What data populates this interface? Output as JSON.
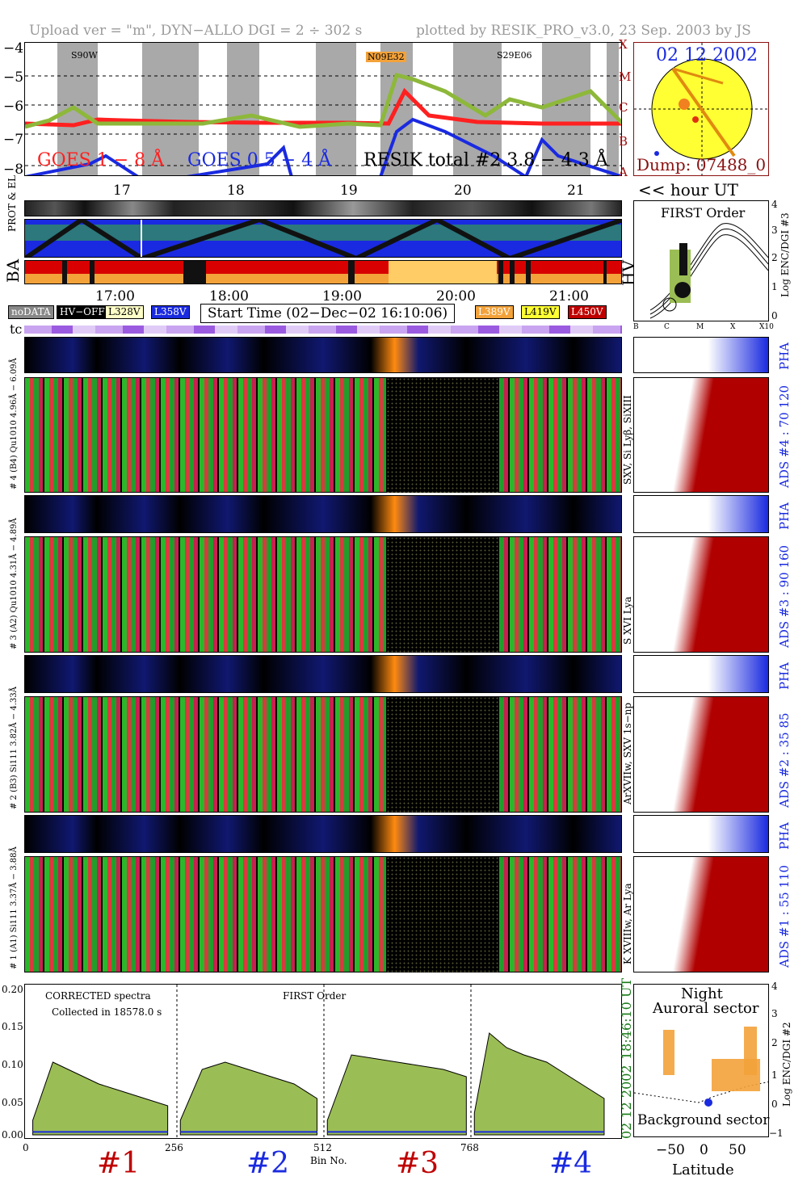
{
  "header": {
    "left": "Upload ver = \"m\", DYN−ALLO DGI =   2 ÷ 302 s",
    "right": "plotted by RESIK_PRO_v3.0, 23 Sep. 2003 by JS"
  },
  "goes": {
    "yticks": [
      "−4",
      "−5",
      "−6",
      "−7",
      "−8"
    ],
    "classes": [
      "X",
      "M",
      "C",
      "B",
      "A"
    ],
    "ar_labels": [
      "S90W",
      "N09E32",
      "S29E06"
    ],
    "legend_goes_long": "GOES 1 − 8 Å",
    "legend_goes_short": "GOES 0.5 − 4 Å",
    "legend_resik": "RESIK total #2  3.8 − 4.3 Å",
    "hour_ticks": [
      "17",
      "18",
      "19",
      "20",
      "21"
    ],
    "hour_unit": "<< hour UT",
    "colors": {
      "goes_long": "#ff2020",
      "goes_short": "#1a2ae0",
      "resik": "#8db83a",
      "shade": "#9a9a9a"
    }
  },
  "sun": {
    "date": "02 12 2002",
    "dump": "Dump: 07488_0"
  },
  "orbit": {
    "labels": [
      "PROT & EL",
      "BA"
    ],
    "first_order_title": "FIRST Order",
    "first_order_axis": "Log ENC/DGI #3",
    "first_order_xticks": [
      "B",
      "C",
      "M",
      "X",
      "X10"
    ],
    "first_order_yticks": [
      "4",
      "3",
      "2",
      "1",
      "0"
    ],
    "hv_label": "HV",
    "time_ticks": [
      "17:00",
      "18:00",
      "19:00",
      "20:00",
      "21:00"
    ]
  },
  "legend": {
    "nodata": "noDATA",
    "hvoff": "HV−OFF",
    "l328": "L328V",
    "l358": "L358V",
    "start": "Start Time (02−Dec−02 16:10:06)",
    "l389": "L389V",
    "l419": "L419V",
    "l450": "L450V",
    "tc": "tc"
  },
  "channels": [
    {
      "pha_label": "6.09Å",
      "label": "# 4 (B4) Qu1010 4.96Å −",
      "lines": "SXV, Si Lyβ, SiXIII",
      "ads": "ADS #4 :   70 120"
    },
    {
      "pha_label": "4.89Å",
      "label": "# 3 (A2) Qu1010 4.31Å −",
      "lines": "S XVI Lya",
      "ads": "ADS #3 :   90 160"
    },
    {
      "pha_label": "4.33Å",
      "label": "# 2 (B3) Si111 3.82Å −",
      "lines": "ArXVIIw, SXV 1s−np",
      "ads": "ADS #2 :   35  85"
    },
    {
      "pha_label": "3.88Å",
      "label": "# 1 (A1) Si111 3.37Å −",
      "lines": "K XVIIIw, Ar Lya",
      "ads": "ADS #1 :   55 110"
    }
  ],
  "pha": "PHA",
  "spectrum": {
    "title1": "CORRECTED spectra",
    "title2": "Collected in 18578.0 s",
    "title3": "FIRST Order",
    "yticks": [
      "0.20",
      "0.15",
      "0.10",
      "0.05",
      "0.00"
    ],
    "xticks": [
      "0",
      "256",
      "512",
      "768"
    ],
    "xlabel": "Bin No.",
    "ch_labels": [
      "#1",
      "#2",
      "#3",
      "#4"
    ],
    "time_right": "18:46:10 UT",
    "date_right": "02 12 2002",
    "colors": {
      "fill": "#9bbd55",
      "line": "#1a2ae0"
    }
  },
  "aurora": {
    "title1": "Night",
    "title2": "Auroral sector",
    "bottom": "Background sector",
    "xlabel": "Latitude",
    "xticks": [
      "−50",
      "0",
      "50"
    ],
    "ylabel": "Log ENC/DGI #2",
    "yticks": [
      "4",
      "3",
      "2",
      "1",
      "0",
      "−1"
    ]
  },
  "chart_data": {
    "type": "line",
    "title": "CORRECTED spectra",
    "xlabel": "Bin No.",
    "ylim": [
      0,
      0.2
    ],
    "xlim": [
      0,
      1024
    ],
    "series": [
      {
        "name": "#1",
        "x": [
          5,
          40,
          80,
          120,
          160,
          200,
          240
        ],
        "values": [
          0.02,
          0.1,
          0.085,
          0.07,
          0.06,
          0.05,
          0.04
        ]
      },
      {
        "name": "#2",
        "x": [
          262,
          300,
          340,
          380,
          420,
          460,
          500
        ],
        "values": [
          0.02,
          0.09,
          0.1,
          0.09,
          0.08,
          0.07,
          0.05
        ]
      },
      {
        "name": "#3",
        "x": [
          518,
          560,
          600,
          640,
          680,
          720,
          760
        ],
        "values": [
          0.02,
          0.11,
          0.105,
          0.1,
          0.095,
          0.09,
          0.08
        ]
      },
      {
        "name": "#4",
        "x": [
          774,
          800,
          830,
          860,
          900,
          940,
          1000
        ],
        "values": [
          0.03,
          0.14,
          0.12,
          0.11,
          0.1,
          0.08,
          0.05
        ]
      }
    ]
  }
}
